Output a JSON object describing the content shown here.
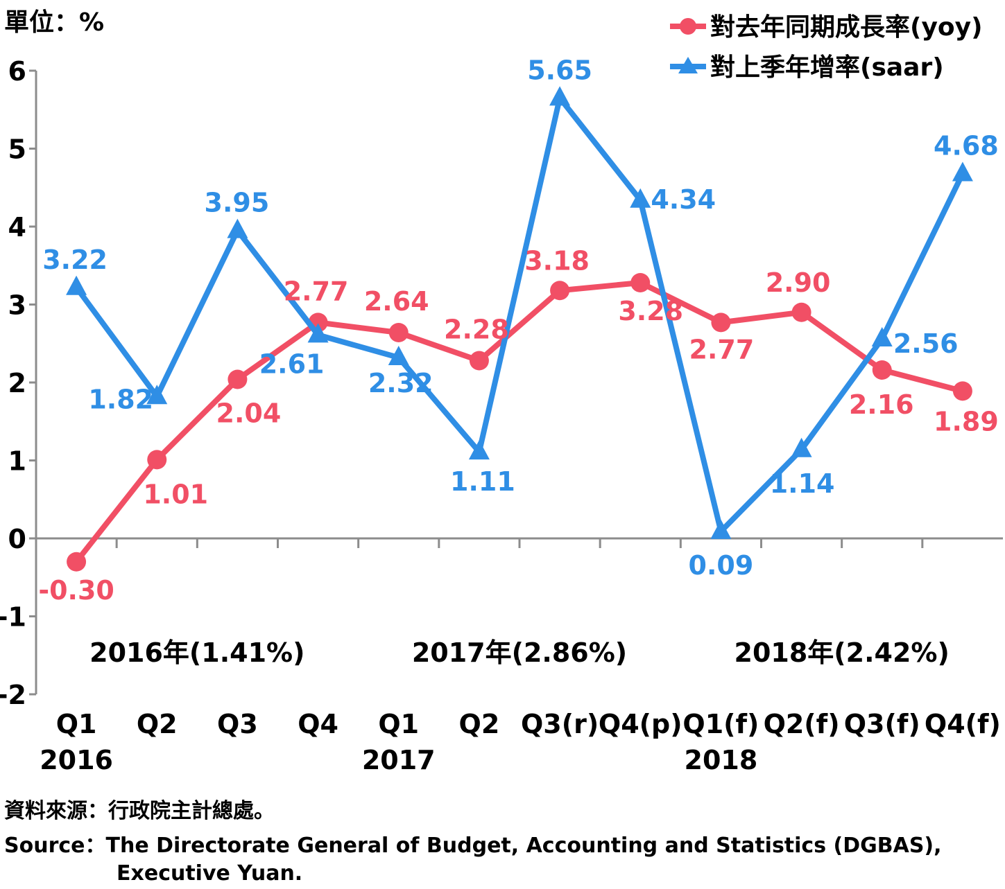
{
  "chart_data": {
    "type": "line",
    "unit_label": "單位：%",
    "categories": [
      "Q1",
      "Q2",
      "Q3",
      "Q4",
      "Q1",
      "Q2",
      "Q3(r)",
      "Q4(p)",
      "Q1(f)",
      "Q2(f)",
      "Q3(f)",
      "Q4(f)"
    ],
    "year_labels": [
      "2016",
      "",
      "",
      "",
      "2017",
      "",
      "",
      "",
      "2018",
      "",
      "",
      ""
    ],
    "period_annotations": [
      "2016年(1.41%)",
      "2017年(2.86%)",
      "2018年(2.42%)"
    ],
    "y_ticks": [
      -2,
      -1,
      0,
      1,
      2,
      3,
      4,
      5,
      6
    ],
    "ylim": [
      -2,
      6
    ],
    "series": [
      {
        "name": "對去年同期成長率(yoy)",
        "color": "#f14f65",
        "marker": "circle",
        "values": [
          -0.3,
          1.01,
          2.04,
          2.77,
          2.64,
          2.28,
          3.18,
          3.28,
          2.77,
          2.9,
          2.16,
          1.89
        ],
        "labels": [
          "-0.30",
          "1.01",
          "2.04",
          "2.77",
          "2.64",
          "2.28",
          "3.18",
          "3.28",
          "2.77",
          "2.90",
          "2.16",
          "1.89"
        ]
      },
      {
        "name": "對上季年增率(saar)",
        "color": "#2f8ee5",
        "marker": "triangle",
        "values": [
          3.22,
          1.82,
          3.95,
          2.61,
          2.32,
          1.11,
          5.65,
          4.34,
          0.09,
          1.14,
          2.56,
          4.68
        ],
        "labels": [
          "3.22",
          "1.82",
          "3.95",
          "2.61",
          "2.32",
          "1.11",
          "5.65",
          "4.34",
          "0.09",
          "1.14",
          "2.56",
          "4.68"
        ]
      }
    ]
  },
  "source": {
    "line1": "資料來源：行政院主計總處。",
    "line2": "Source：The Directorate General of Budget, Accounting and Statistics (DGBAS),",
    "line3": "Executive Yuan."
  }
}
